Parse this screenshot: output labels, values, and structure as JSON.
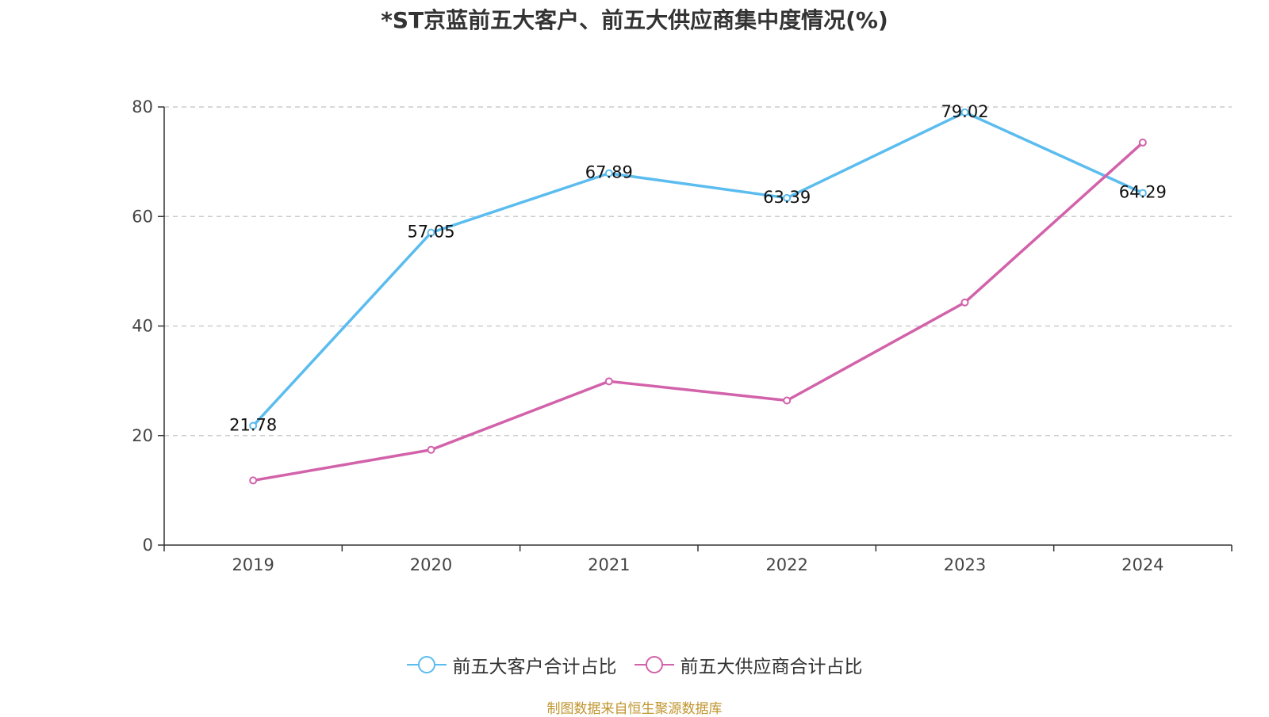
{
  "chart_data": {
    "type": "line",
    "title": "*ST京蓝前五大客户、前五大供应商集中度情况(%)",
    "categories": [
      "2019",
      "2020",
      "2021",
      "2022",
      "2023",
      "2024"
    ],
    "ylim": [
      0,
      80
    ],
    "yticks": [
      0,
      20,
      40,
      60,
      80
    ],
    "grid": true,
    "legend_position": "bottom",
    "series": [
      {
        "name": "前五大客户合计占比",
        "color": "#5bbcef",
        "values": [
          21.78,
          57.05,
          67.89,
          63.39,
          79.02,
          64.29
        ],
        "labels": [
          "21.78",
          "57.05",
          "67.89",
          "63.39",
          "79.02",
          "64.29"
        ]
      },
      {
        "name": "前五大供应商合计占比",
        "color": "#d262aa",
        "values": [
          11.8,
          17.4,
          29.9,
          26.4,
          44.3,
          73.5
        ],
        "labels": null
      }
    ]
  },
  "source_note": "制图数据来自恒生聚源数据库"
}
